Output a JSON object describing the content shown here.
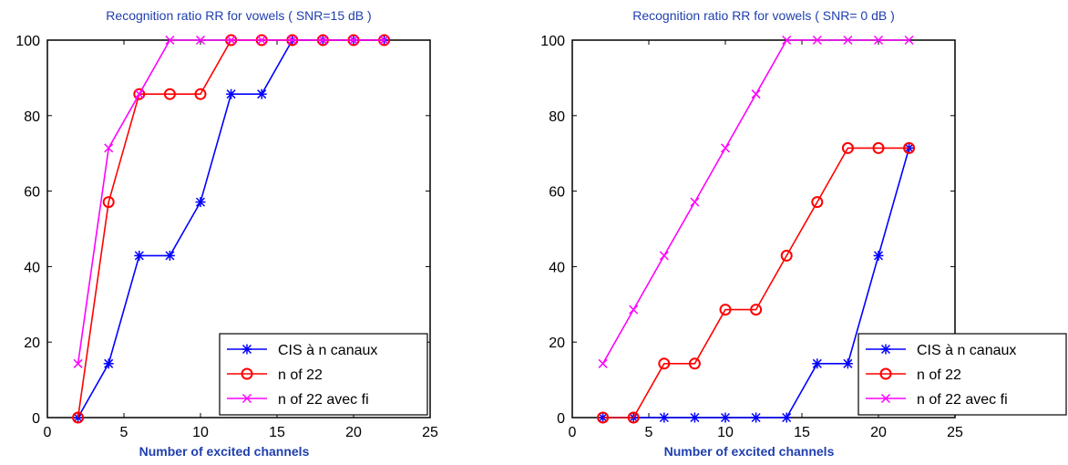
{
  "chart_data": [
    {
      "type": "line",
      "title": "Recognition ratio RR for vowels ( SNR=15 dB )",
      "xlabel": "Number of excited channels",
      "ylabel": "",
      "xlim": [
        0,
        25
      ],
      "ylim": [
        0,
        100
      ],
      "xticks": [
        0,
        5,
        10,
        15,
        20,
        25
      ],
      "yticks": [
        0,
        20,
        40,
        60,
        80,
        100
      ],
      "grid": false,
      "legend": "bottom-right",
      "series": [
        {
          "name": "CIS à n canaux",
          "color": "#0000ff",
          "marker": "star",
          "x": [
            2,
            4,
            6,
            8,
            10,
            12,
            14,
            16,
            18,
            20,
            22
          ],
          "values": [
            0,
            14.3,
            42.9,
            42.9,
            57.1,
            85.7,
            85.7,
            100,
            100,
            100,
            100
          ]
        },
        {
          "name": "n of 22",
          "color": "#ff0000",
          "marker": "circle",
          "x": [
            2,
            4,
            6,
            8,
            10,
            12,
            14,
            16,
            18,
            20,
            22
          ],
          "values": [
            0,
            57.1,
            85.7,
            85.7,
            85.7,
            100,
            100,
            100,
            100,
            100,
            100
          ]
        },
        {
          "name": "n of 22 avec fi",
          "color": "#ff00ff",
          "marker": "x",
          "x": [
            2,
            4,
            6,
            8,
            10,
            12,
            14,
            16,
            18,
            20,
            22
          ],
          "values": [
            14.3,
            71.4,
            85.7,
            100,
            100,
            100,
            100,
            100,
            100,
            100,
            100
          ]
        }
      ]
    },
    {
      "type": "line",
      "title": "Recognition ratio RR for vowels ( SNR= 0 dB )",
      "xlabel": "Number of excited channels",
      "ylabel": "",
      "xlim": [
        0,
        25
      ],
      "ylim": [
        0,
        100
      ],
      "xticks": [
        0,
        5,
        10,
        15,
        20,
        25
      ],
      "yticks": [
        0,
        20,
        40,
        60,
        80,
        100
      ],
      "grid": false,
      "legend": "bottom-right",
      "series": [
        {
          "name": "CIS à n canaux",
          "color": "#0000ff",
          "marker": "star",
          "x": [
            2,
            4,
            6,
            8,
            10,
            12,
            14,
            16,
            18,
            20,
            22
          ],
          "values": [
            0,
            0,
            0,
            0,
            0,
            0,
            0,
            14.3,
            14.3,
            42.9,
            71.4
          ]
        },
        {
          "name": "n of 22",
          "color": "#ff0000",
          "marker": "circle",
          "x": [
            2,
            4,
            6,
            8,
            10,
            12,
            14,
            16,
            18,
            20,
            22
          ],
          "values": [
            0,
            0,
            14.3,
            14.3,
            28.6,
            28.6,
            42.9,
            57.1,
            71.4,
            71.4,
            71.4
          ]
        },
        {
          "name": "n of 22 avec fi",
          "color": "#ff00ff",
          "marker": "x",
          "x": [
            2,
            4,
            6,
            8,
            10,
            12,
            14,
            16,
            18,
            20,
            22
          ],
          "values": [
            14.3,
            28.6,
            42.9,
            57.1,
            71.4,
            85.7,
            100,
            100,
            100,
            100,
            100
          ]
        }
      ]
    }
  ]
}
